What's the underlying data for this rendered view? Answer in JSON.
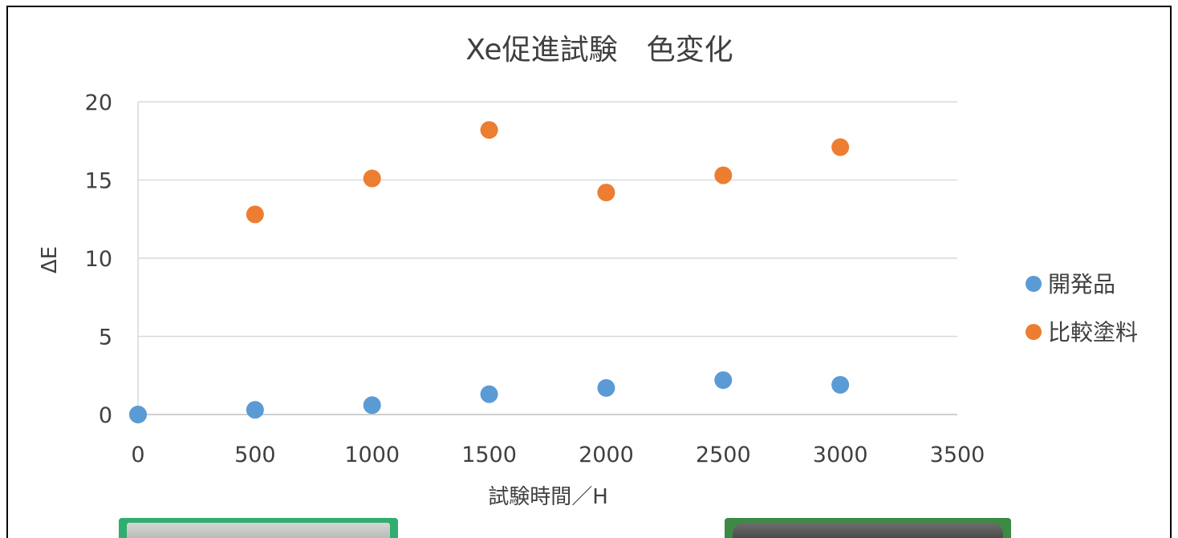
{
  "chart_data": {
    "type": "scatter",
    "title": "Xe促進試験　色変化",
    "xlabel": "試験時間／H",
    "ylabel": "ΔE",
    "xlim": [
      0,
      3500
    ],
    "ylim": [
      0,
      20
    ],
    "x_ticks": [
      "0",
      "500",
      "1000",
      "1500",
      "2000",
      "2500",
      "3000",
      "3500"
    ],
    "y_ticks": [
      "0",
      "5",
      "10",
      "15",
      "20"
    ],
    "grid": "horizontal",
    "legend_position": "right",
    "series": [
      {
        "name": "開発品",
        "color": "#5b9bd5",
        "x": [
          0,
          500,
          1000,
          1500,
          2000,
          2500,
          3000
        ],
        "y": [
          0,
          0.3,
          0.6,
          1.3,
          1.7,
          2.2,
          1.9
        ]
      },
      {
        "name": "比較塗料",
        "color": "#ed7d31",
        "x": [
          0,
          500,
          1000,
          1500,
          2000,
          2500,
          3000
        ],
        "y": [
          0,
          12.8,
          15.1,
          18.2,
          14.2,
          15.3,
          17.1
        ]
      }
    ]
  }
}
